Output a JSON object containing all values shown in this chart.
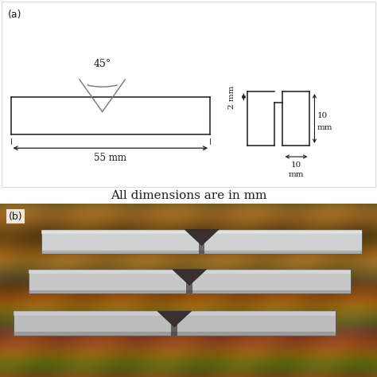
{
  "label_a": "(a)",
  "label_b": "(b)",
  "angle_label": "45°",
  "dim_55": "55 mm",
  "dim_2mm": "2 mm",
  "dim_10h": "10",
  "dim_10w": "10",
  "dim_mm1": "mm",
  "dim_mm2": "mm",
  "caption": "All dimensions are in mm",
  "bg_color": "#ffffff",
  "line_color": "#1a1a1a",
  "gray_color": "#777777",
  "fig_width": 4.74,
  "fig_height": 4.74,
  "dpi": 100
}
